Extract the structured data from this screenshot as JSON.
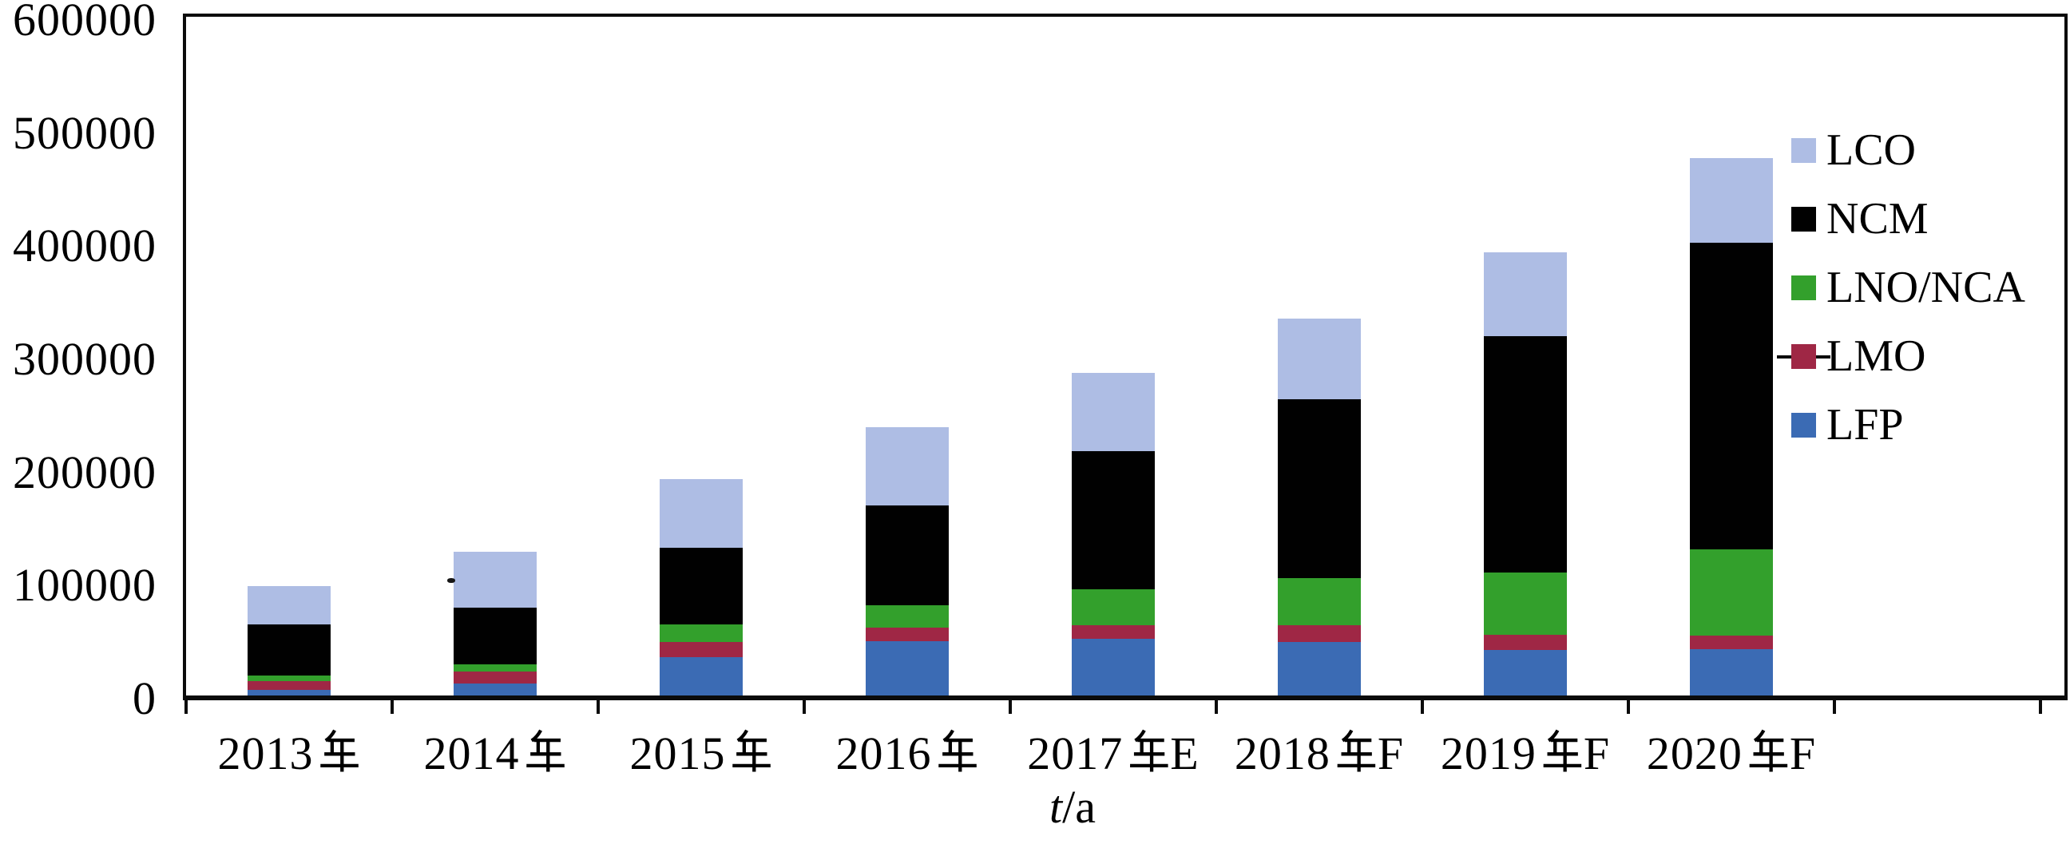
{
  "chart_data": {
    "type": "bar",
    "stacked": true,
    "title": "",
    "xlabel": "t/a",
    "xlabel_italic_part": "t",
    "xlabel_rest_part": "/a",
    "ylabel": "",
    "ylim": [
      0,
      600000
    ],
    "ytick_step": 100000,
    "grid": false,
    "legend_position": "inside-top-right",
    "categories": [
      "2013年",
      "2014年",
      "2015年",
      "2016年",
      "2017年E",
      "2018年F",
      "2019年F",
      "2020年F"
    ],
    "categories_parts": [
      {
        "num": "2013",
        "tag": ""
      },
      {
        "num": "2014",
        "tag": ""
      },
      {
        "num": "2015",
        "tag": ""
      },
      {
        "num": "2016",
        "tag": ""
      },
      {
        "num": "2017",
        "tag": "E"
      },
      {
        "num": "2018",
        "tag": "F"
      },
      {
        "num": "2019",
        "tag": "F"
      },
      {
        "num": "2020",
        "tag": "F"
      }
    ],
    "yaxis_tick_labels": [
      "0",
      "100000",
      "200000",
      "300000",
      "400000",
      "500000",
      "600000"
    ],
    "series": [
      {
        "name": "LFP",
        "color": "#3b6bb4",
        "values": [
          5000,
          10500,
          34000,
          48000,
          50000,
          47000,
          40000,
          41000
        ]
      },
      {
        "name": "LMO",
        "color": "#9f2745",
        "values": [
          8000,
          10500,
          13500,
          12000,
          12000,
          15000,
          13500,
          12000
        ]
      },
      {
        "name": "LNO/NCA",
        "color": "#33a02c",
        "values": [
          5000,
          6500,
          15000,
          20000,
          32000,
          42000,
          55000,
          76000
        ]
      },
      {
        "name": "NCM",
        "color": "#010101",
        "values": [
          45000,
          50000,
          68000,
          88000,
          122000,
          158000,
          209500,
          271000
        ]
      },
      {
        "name": "LCO",
        "color": "#aebde4",
        "values": [
          34000,
          49500,
          61000,
          69000,
          69000,
          71000,
          74000,
          75000
        ]
      }
    ],
    "totals": [
      97000,
      127000,
      191500,
      237000,
      285000,
      333000,
      392000,
      475000
    ],
    "legend": [
      {
        "label": "LCO",
        "color": "#aebde4",
        "line_marker": false
      },
      {
        "label": "NCM",
        "color": "#010101",
        "line_marker": false
      },
      {
        "label": "LNO/NCA",
        "color": "#33a02c",
        "line_marker": false
      },
      {
        "label": "LMO",
        "color": "#9f2745",
        "line_marker": true
      },
      {
        "label": "LFP",
        "color": "#3b6bb4",
        "line_marker": false
      }
    ]
  }
}
